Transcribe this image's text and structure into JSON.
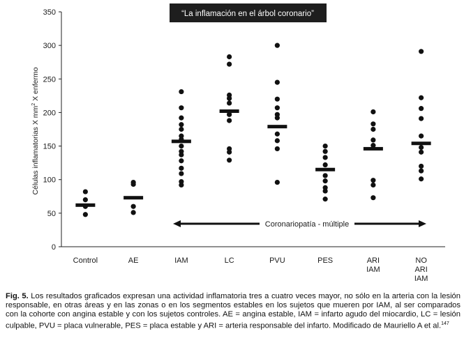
{
  "chart_data": {
    "type": "scatter",
    "title": "“La inflamación en el árbol coronario”",
    "ylabel_main": "Células inflamatorias X mm",
    "ylabel_sup": "2",
    "ylabel_tail": " X enfermo",
    "ylim": [
      0,
      350
    ],
    "yticks": [
      0,
      50,
      100,
      150,
      200,
      250,
      300,
      350
    ],
    "categories": [
      {
        "label": [
          "Control"
        ],
        "median": 62,
        "points": [
          82,
          70,
          60,
          48
        ]
      },
      {
        "label": [
          "AE"
        ],
        "median": 73,
        "points": [
          96,
          93,
          60,
          51
        ]
      },
      {
        "label": [
          "IAM"
        ],
        "median": 157,
        "points": [
          231,
          207,
          192,
          182,
          175,
          165,
          160,
          150,
          142,
          137,
          128,
          117,
          109,
          97,
          92
        ]
      },
      {
        "label": [
          "LC"
        ],
        "median": 202,
        "points": [
          283,
          272,
          226,
          221,
          214,
          201,
          197,
          188,
          146,
          141,
          129
        ]
      },
      {
        "label": [
          "PVU"
        ],
        "median": 179,
        "points": [
          300,
          245,
          220,
          207,
          197,
          192,
          168,
          158,
          146,
          96
        ]
      },
      {
        "label": [
          "PES"
        ],
        "median": 115,
        "points": [
          150,
          142,
          133,
          122,
          106,
          98,
          88,
          83,
          71
        ]
      },
      {
        "label": [
          "ARI",
          "IAM"
        ],
        "median": 146,
        "points": [
          201,
          183,
          175,
          159,
          151,
          99,
          92,
          73
        ]
      },
      {
        "label": [
          "NO",
          "ARI",
          "IAM"
        ],
        "median": 154,
        "points": [
          291,
          222,
          206,
          191,
          165,
          148,
          141,
          120,
          113,
          101
        ]
      }
    ],
    "annotation": "Coronariopatía - múltiple"
  },
  "caption": {
    "label": "Fig. 5.",
    "text": " Los resultados graficados expresan una actividad inflamatoria tres a cuatro veces mayor, no sólo en la arteria con la lesión responsable, en otras áreas y en las zonas o en los segmentos estables en los sujetos que mueren por IAM, al ser comparados con la cohorte con angina estable y con los sujetos controles. AE = angina estable, IAM = infarto agudo del miocardio, LC = lesión culpable, PVU = placa vulnerable, PES = placa estable y ARI = arteria responsable del infarto. Modificado de Mauriello A et al.",
    "ref": "147"
  }
}
